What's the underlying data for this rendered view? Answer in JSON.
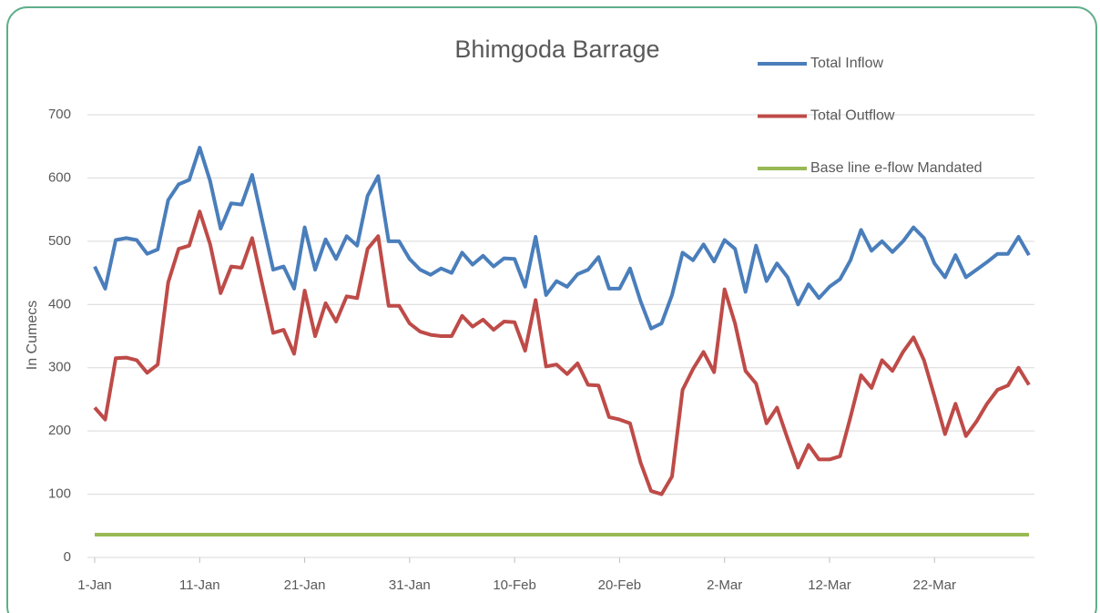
{
  "chart_data": {
    "type": "line",
    "title": "Bhimgoda Barrage",
    "y_label": "In Cumecs",
    "categories": [
      "1-Jan",
      null,
      null,
      null,
      null,
      null,
      null,
      null,
      null,
      null,
      "11-Jan",
      null,
      null,
      null,
      null,
      null,
      null,
      null,
      null,
      null,
      "21-Jan",
      null,
      null,
      null,
      null,
      null,
      null,
      null,
      null,
      null,
      "31-Jan",
      null,
      null,
      null,
      null,
      null,
      null,
      null,
      null,
      null,
      "10-Feb",
      null,
      null,
      null,
      null,
      null,
      null,
      null,
      null,
      null,
      "20-Feb",
      null,
      null,
      null,
      null,
      null,
      null,
      null,
      null,
      null,
      "2-Mar",
      null,
      null,
      null,
      null,
      null,
      null,
      null,
      null,
      null,
      "12-Mar",
      null,
      null,
      null,
      null,
      null,
      null,
      null,
      null,
      null,
      "22-Mar",
      null,
      null,
      null,
      null,
      null,
      null,
      null,
      null,
      null
    ],
    "series": [
      {
        "name": "Total Inflow",
        "color": "#4a7ebb",
        "values": [
          460,
          425,
          502,
          505,
          502,
          480,
          487,
          565,
          590,
          597,
          648,
          595,
          520,
          560,
          558,
          605,
          530,
          455,
          460,
          425,
          522,
          455,
          503,
          472,
          508,
          493,
          572,
          603,
          500,
          500,
          472,
          455,
          447,
          457,
          450,
          482,
          463,
          477,
          460,
          473,
          472,
          428,
          507,
          415,
          437,
          428,
          448,
          455,
          475,
          425,
          425,
          457,
          405,
          362,
          370,
          415,
          482,
          470,
          495,
          468,
          502,
          488,
          420,
          493,
          437,
          465,
          443,
          400,
          432,
          410,
          428,
          440,
          470,
          518,
          485,
          500,
          483,
          500,
          522,
          505,
          465,
          443,
          478,
          443,
          455,
          467,
          480,
          480,
          507,
          478
        ]
      },
      {
        "name": "Total Outflow",
        "color": "#be4b48",
        "values": [
          237,
          218,
          315,
          316,
          312,
          292,
          305,
          435,
          488,
          493,
          547,
          495,
          418,
          460,
          458,
          505,
          430,
          355,
          360,
          322,
          422,
          350,
          402,
          373,
          413,
          410,
          488,
          508,
          398,
          398,
          370,
          357,
          352,
          350,
          350,
          382,
          365,
          376,
          360,
          373,
          372,
          327,
          407,
          302,
          305,
          290,
          307,
          273,
          272,
          222,
          218,
          212,
          150,
          105,
          100,
          128,
          265,
          298,
          325,
          293,
          424,
          370,
          295,
          275,
          212,
          237,
          188,
          142,
          178,
          155,
          155,
          160,
          222,
          288,
          268,
          312,
          295,
          325,
          348,
          312,
          255,
          195,
          243,
          192,
          215,
          243,
          265,
          272,
          300,
          273
        ]
      },
      {
        "name": "Base line e-flow Mandated",
        "color": "#98b954",
        "values": [
          36,
          36,
          36,
          36,
          36,
          36,
          36,
          36,
          36,
          36,
          36,
          36,
          36,
          36,
          36,
          36,
          36,
          36,
          36,
          36,
          36,
          36,
          36,
          36,
          36,
          36,
          36,
          36,
          36,
          36,
          36,
          36,
          36,
          36,
          36,
          36,
          36,
          36,
          36,
          36,
          36,
          36,
          36,
          36,
          36,
          36,
          36,
          36,
          36,
          36,
          36,
          36,
          36,
          36,
          36,
          36,
          36,
          36,
          36,
          36,
          36,
          36,
          36,
          36,
          36,
          36,
          36,
          36,
          36,
          36,
          36,
          36,
          36,
          36,
          36,
          36,
          36,
          36,
          36,
          36,
          36,
          36,
          36,
          36,
          36,
          36,
          36,
          36,
          36,
          36
        ]
      }
    ],
    "ylim": [
      0,
      700
    ],
    "yticks": [
      0,
      100,
      200,
      300,
      400,
      500,
      600,
      700
    ],
    "grid": true,
    "legend": "upper right"
  }
}
